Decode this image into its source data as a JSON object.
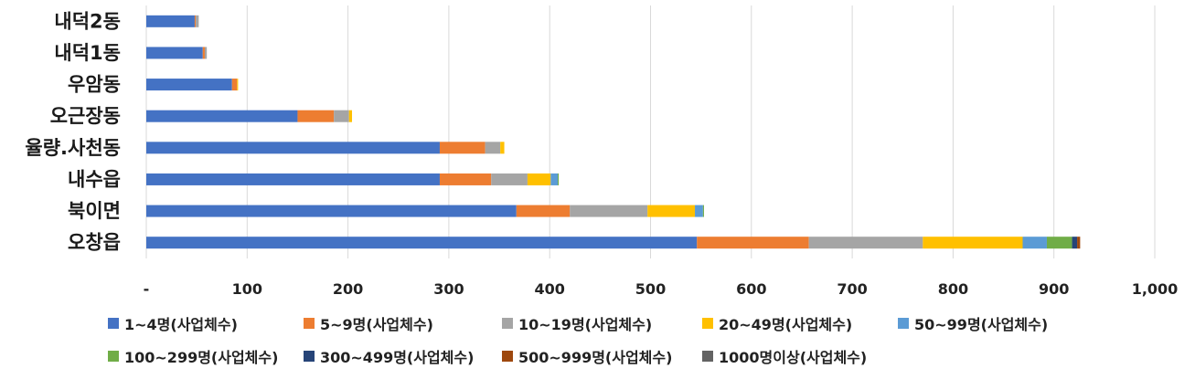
{
  "chart_data": {
    "type": "bar",
    "orientation": "horizontal",
    "stacked": true,
    "categories": [
      "내덕2동",
      "내덕1동",
      "우암동",
      "오근장동",
      "율량.사천동",
      "내수읍",
      "북이면",
      "오창읍"
    ],
    "series": [
      {
        "name": "1~4명(사업체수)",
        "color": "#4472C4",
        "values": [
          48,
          56,
          85,
          150,
          291,
          291,
          367,
          546
        ]
      },
      {
        "name": "5~9명(사업체수)",
        "color": "#ED7D31",
        "values": [
          1,
          2,
          5,
          36,
          45,
          51,
          53,
          111
        ]
      },
      {
        "name": "10~19명(사업체수)",
        "color": "#A5A5A5",
        "values": [
          3,
          2,
          0,
          15,
          15,
          36,
          77,
          113
        ]
      },
      {
        "name": "20~49명(사업체수)",
        "color": "#FFC000",
        "values": [
          0,
          0,
          1,
          3,
          4,
          23,
          47,
          99
        ]
      },
      {
        "name": "50~99명(사업체수)",
        "color": "#5B9BD5",
        "values": [
          0,
          0,
          0,
          0,
          0,
          7,
          8,
          24
        ]
      },
      {
        "name": "100~299명(사업체수)",
        "color": "#70AD47",
        "values": [
          0,
          0,
          0,
          0,
          0,
          1,
          1,
          25
        ]
      },
      {
        "name": "300~499명(사업체수)",
        "color": "#264478",
        "values": [
          0,
          0,
          0,
          0,
          0,
          0,
          0,
          5
        ]
      },
      {
        "name": "500~999명(사업체수)",
        "color": "#9E480E",
        "values": [
          0,
          0,
          0,
          0,
          0,
          0,
          0,
          3
        ]
      },
      {
        "name": "1000명이상(사업체수)",
        "color": "#636363",
        "values": [
          0,
          0,
          0,
          0,
          0,
          0,
          0,
          0
        ]
      }
    ],
    "xlim": [
      0,
      1000
    ],
    "xticks": [
      0,
      100,
      200,
      300,
      400,
      500,
      600,
      700,
      800,
      900,
      1000
    ],
    "xtick_labels": [
      "-",
      "100",
      "200",
      "300",
      "400",
      "500",
      "600",
      "700",
      "800",
      "900",
      "1,000"
    ],
    "grid": "vertical",
    "legend_position": "bottom",
    "title": "",
    "xlabel": "",
    "ylabel": ""
  }
}
